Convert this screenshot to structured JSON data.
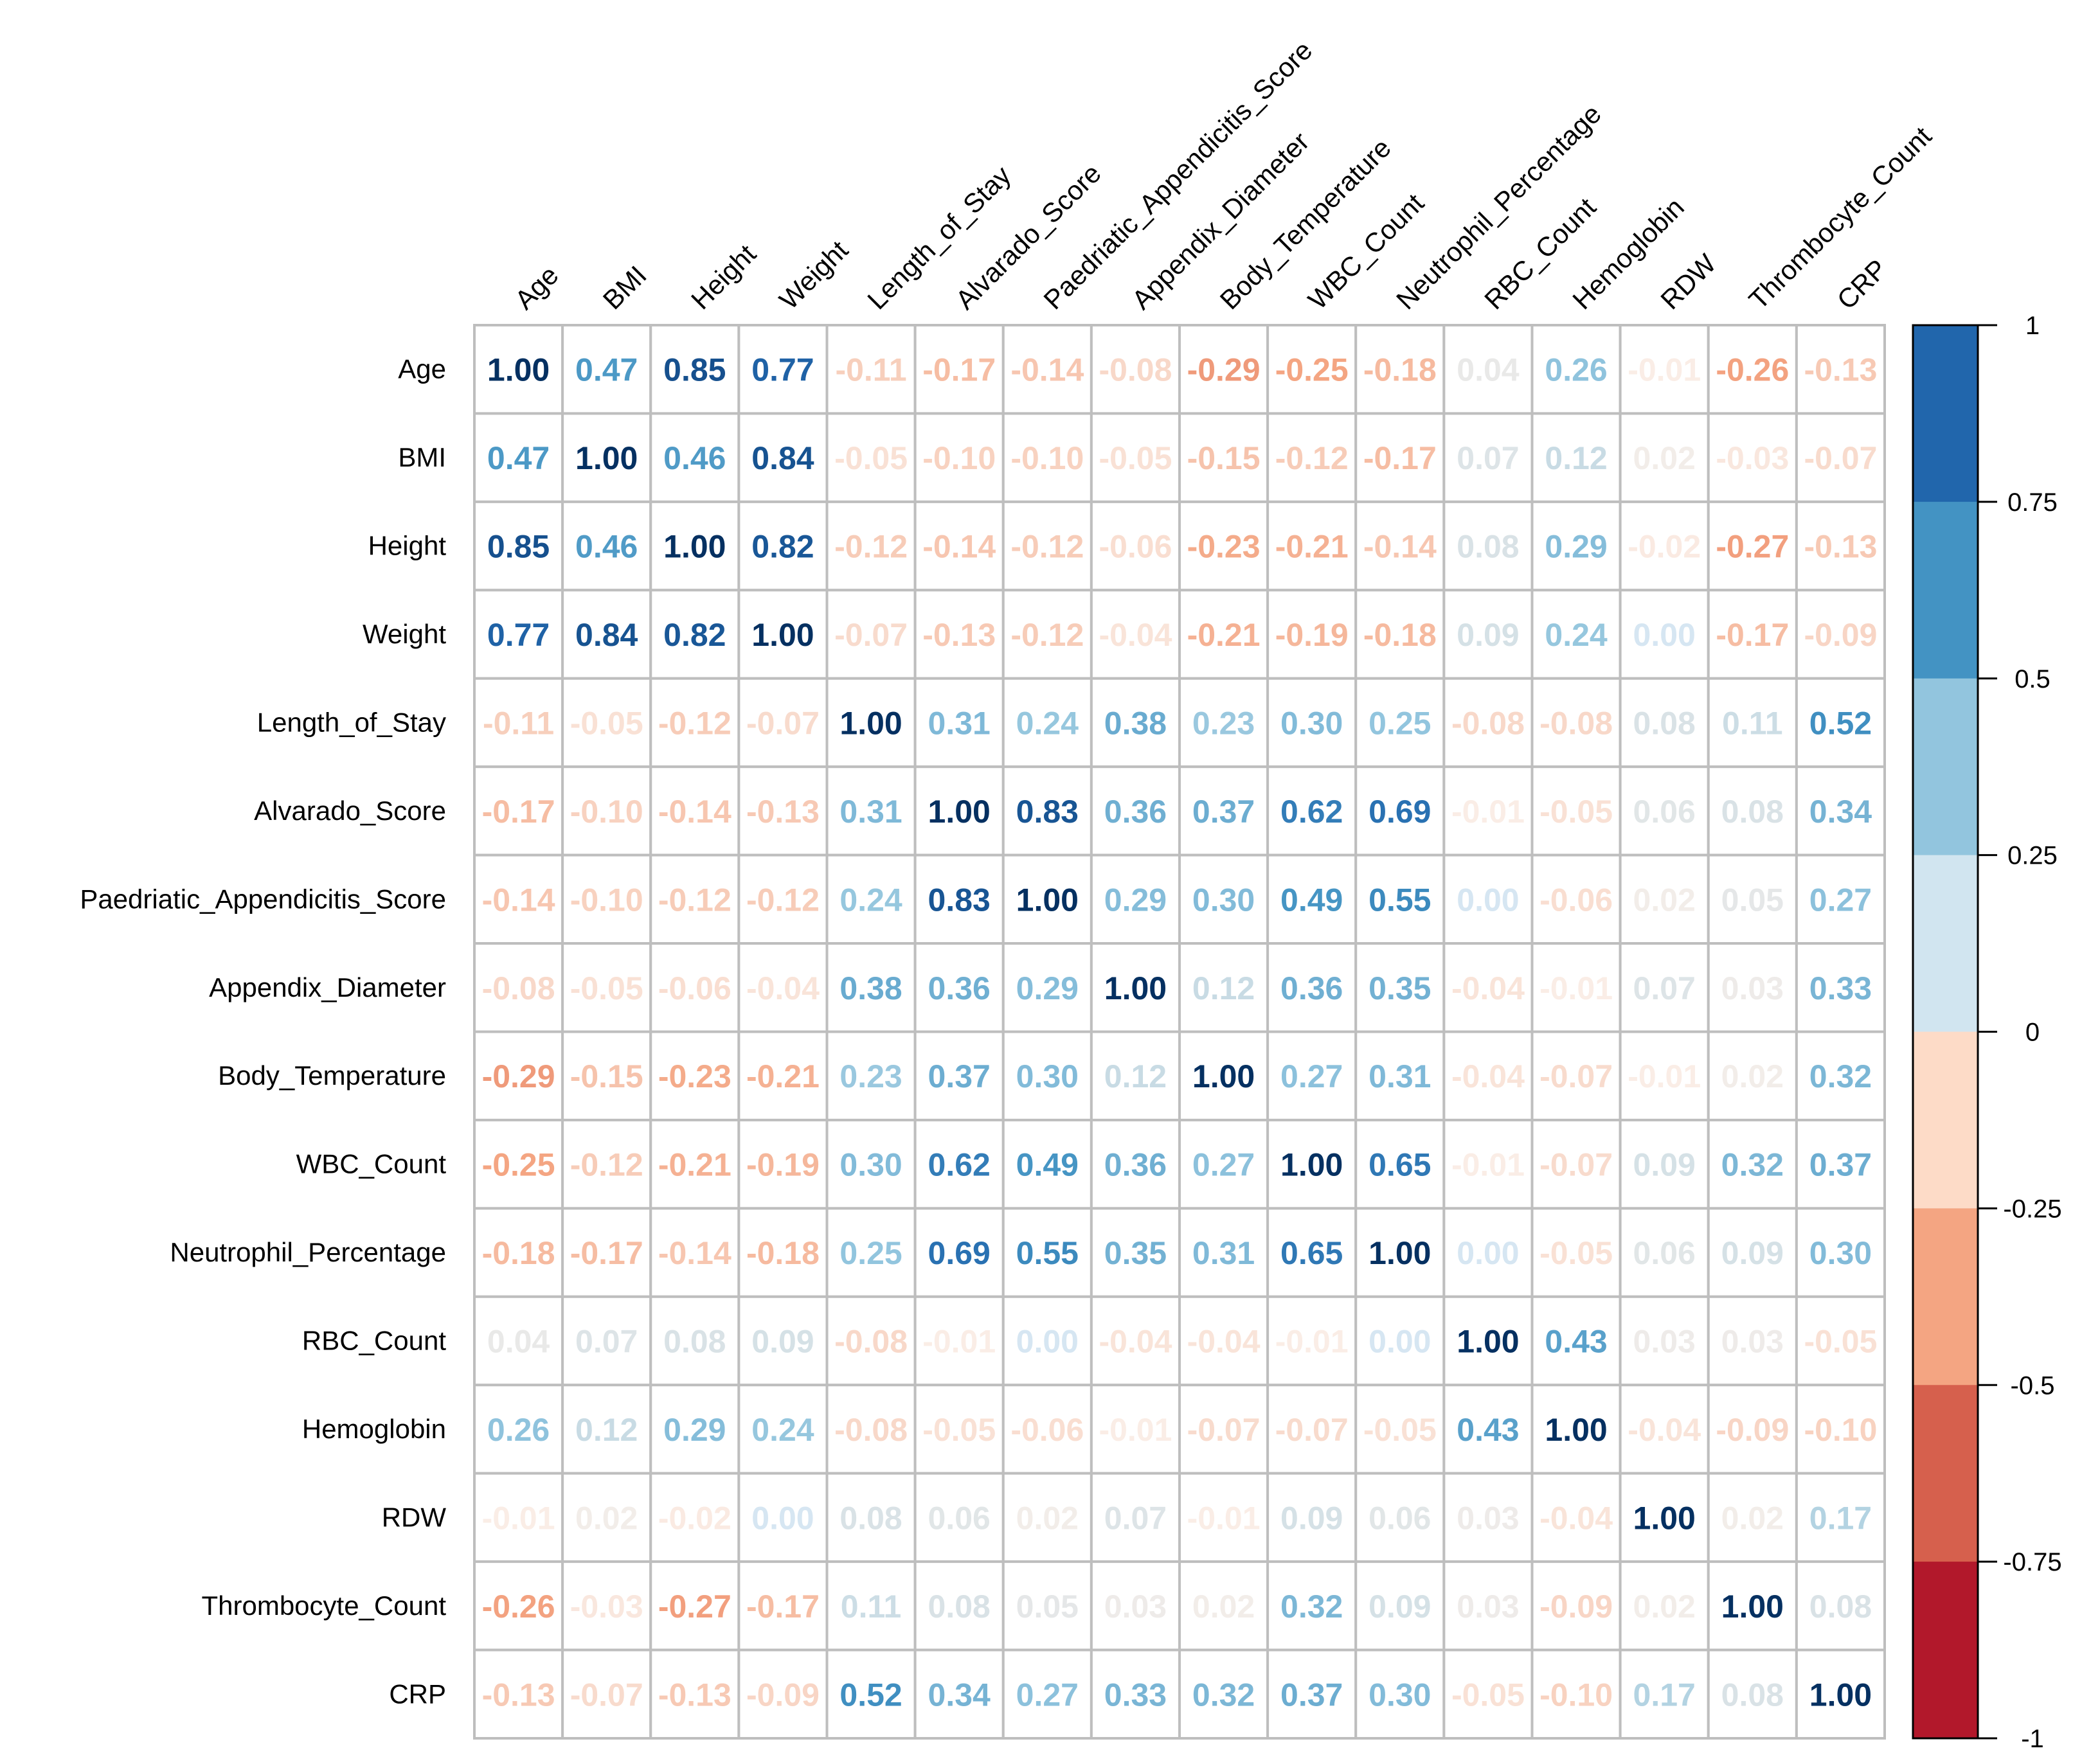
{
  "chart_data": {
    "type": "heatmap",
    "variables": [
      "Age",
      "BMI",
      "Height",
      "Weight",
      "Length_of_Stay",
      "Alvarado_Score",
      "Paedriatic_Appendicitis_Score",
      "Appendix_Diameter",
      "Body_Temperature",
      "WBC_Count",
      "Neutrophil_Percentage",
      "RBC_Count",
      "Hemoglobin",
      "RDW",
      "Thrombocyte_Count",
      "CRP"
    ],
    "column_labels": [
      "Age",
      "BMI",
      "Height",
      "Weight",
      "Length_of_Stay",
      "Alvarado_Score",
      "Paedriatic_Appendicitis_Score",
      "Appendix_Diameter",
      "Body_Temperature",
      "WBC_Count",
      "Neutrophil_Percentage",
      "RBC_Count",
      "Hemoglobin",
      "RDW",
      "Thrombocyte_Count",
      "CRP"
    ],
    "row_labels": [
      "Age",
      "BMI",
      "Height",
      "Weight",
      "Length_of_Stay",
      "Alvarado_Score",
      "Paedriatic_Appendicitis_Score",
      "Appendix_Diameter",
      "Body_Temperature",
      "WBC_Count",
      "Neutrophil_Percentage",
      "RBC_Count",
      "Hemoglobin",
      "RDW",
      "Thrombocyte_Count",
      "CRP"
    ],
    "matrix": [
      [
        1.0,
        0.47,
        0.85,
        0.77,
        -0.11,
        -0.17,
        -0.14,
        -0.08,
        -0.29,
        -0.25,
        -0.18,
        0.04,
        0.26,
        -0.01,
        -0.26,
        -0.13
      ],
      [
        0.47,
        1.0,
        0.46,
        0.84,
        -0.05,
        -0.1,
        -0.1,
        -0.05,
        -0.15,
        -0.12,
        -0.17,
        0.07,
        0.12,
        0.02,
        -0.03,
        -0.07
      ],
      [
        0.85,
        0.46,
        1.0,
        0.82,
        -0.12,
        -0.14,
        -0.12,
        -0.06,
        -0.23,
        -0.21,
        -0.14,
        0.08,
        0.29,
        -0.02,
        -0.27,
        -0.13
      ],
      [
        0.77,
        0.84,
        0.82,
        1.0,
        -0.07,
        -0.13,
        -0.12,
        -0.04,
        -0.21,
        -0.19,
        -0.18,
        0.09,
        0.24,
        0.0,
        -0.17,
        -0.09
      ],
      [
        -0.11,
        -0.05,
        -0.12,
        -0.07,
        1.0,
        0.31,
        0.24,
        0.38,
        0.23,
        0.3,
        0.25,
        -0.08,
        -0.08,
        0.08,
        0.11,
        0.52
      ],
      [
        -0.17,
        -0.1,
        -0.14,
        -0.13,
        0.31,
        1.0,
        0.83,
        0.36,
        0.37,
        0.62,
        0.69,
        -0.01,
        -0.05,
        0.06,
        0.08,
        0.34
      ],
      [
        -0.14,
        -0.1,
        -0.12,
        -0.12,
        0.24,
        0.83,
        1.0,
        0.29,
        0.3,
        0.49,
        0.55,
        0.0,
        -0.06,
        0.02,
        0.05,
        0.27
      ],
      [
        -0.08,
        -0.05,
        -0.06,
        -0.04,
        0.38,
        0.36,
        0.29,
        1.0,
        0.12,
        0.36,
        0.35,
        -0.04,
        -0.01,
        0.07,
        0.03,
        0.33
      ],
      [
        -0.29,
        -0.15,
        -0.23,
        -0.21,
        0.23,
        0.37,
        0.3,
        0.12,
        1.0,
        0.27,
        0.31,
        -0.04,
        -0.07,
        -0.01,
        0.02,
        0.32
      ],
      [
        -0.25,
        -0.12,
        -0.21,
        -0.19,
        0.3,
        0.62,
        0.49,
        0.36,
        0.27,
        1.0,
        0.65,
        -0.01,
        -0.07,
        0.09,
        0.32,
        0.37
      ],
      [
        -0.18,
        -0.17,
        -0.14,
        -0.18,
        0.25,
        0.69,
        0.55,
        0.35,
        0.31,
        0.65,
        1.0,
        0.0,
        -0.05,
        0.06,
        0.09,
        0.3
      ],
      [
        0.04,
        0.07,
        0.08,
        0.09,
        -0.08,
        -0.01,
        0.0,
        -0.04,
        -0.04,
        -0.01,
        0.0,
        1.0,
        0.43,
        0.03,
        0.03,
        -0.05
      ],
      [
        0.26,
        0.12,
        0.29,
        0.24,
        -0.08,
        -0.05,
        -0.06,
        -0.01,
        -0.07,
        -0.07,
        -0.05,
        0.43,
        1.0,
        -0.04,
        -0.09,
        -0.1
      ],
      [
        -0.01,
        0.02,
        -0.02,
        0.0,
        0.08,
        0.06,
        0.02,
        0.07,
        -0.01,
        0.09,
        0.06,
        0.03,
        -0.04,
        1.0,
        0.02,
        0.17
      ],
      [
        -0.26,
        -0.03,
        -0.27,
        -0.17,
        0.11,
        0.08,
        0.05,
        0.03,
        0.02,
        0.32,
        0.09,
        0.03,
        -0.09,
        0.02,
        1.0,
        0.08
      ],
      [
        -0.13,
        -0.07,
        -0.13,
        -0.09,
        0.52,
        0.34,
        0.27,
        0.33,
        0.32,
        0.37,
        0.3,
        -0.05,
        -0.1,
        0.17,
        0.08,
        1.0
      ]
    ],
    "colorbar": {
      "range": [
        -1,
        1
      ],
      "ticks": [
        1,
        0.75,
        0.5,
        0.25,
        0,
        -0.25,
        -0.5,
        -0.75,
        -1
      ],
      "tick_labels": [
        "1",
        "0.75",
        "0.5",
        "0.25",
        "0",
        "-0.25",
        "-0.5",
        "-0.75",
        "-1"
      ],
      "colors_top_to_bottom": [
        "#2166AC",
        "#4393C3",
        "#92C5DE",
        "#D1E5F0",
        "#FDDBC7",
        "#F4A582",
        "#D6604D",
        "#B2182B"
      ]
    }
  }
}
